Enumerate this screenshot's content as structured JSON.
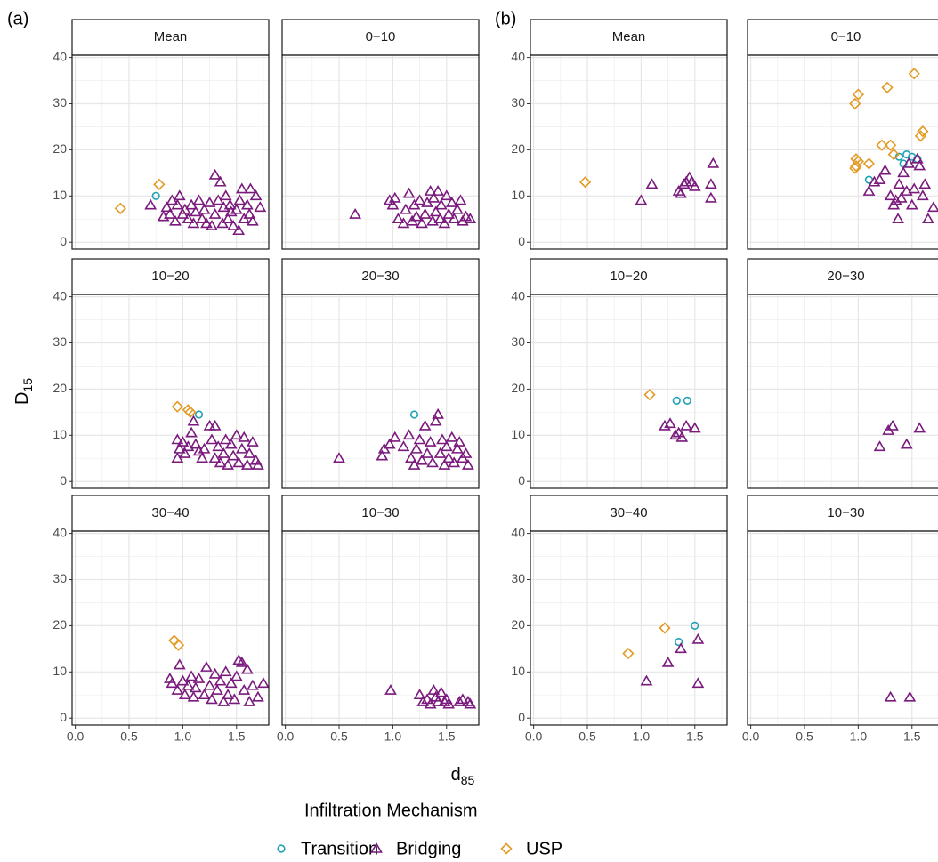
{
  "chart_data": {
    "type": "scatter",
    "xlabel": {
      "text": "d",
      "sub": "85"
    },
    "ylabel": {
      "text": "D",
      "sub": "15"
    },
    "legend_title": "Infiltration Mechanism",
    "legend_position": "bottom",
    "grid": true,
    "xlim": [
      -0.03,
      1.8
    ],
    "ylim": [
      -1.5,
      40.5
    ],
    "xticks": [
      {
        "value": 0,
        "label": "0.0"
      },
      0.5,
      {
        "value": 1,
        "label": "1.0"
      },
      1.5
    ],
    "yticks": [
      0,
      10,
      20,
      30,
      40
    ],
    "series": [
      {
        "name": "Transition",
        "color": "#1fa2b5",
        "marker": "circle"
      },
      {
        "name": "Bridging",
        "color": "#7a1a7d",
        "marker": "triangle"
      },
      {
        "name": "USP",
        "color": "#e39a24",
        "marker": "diamond"
      }
    ],
    "groups": [
      {
        "label": "(a)",
        "panels": [
          {
            "title": "Mean",
            "series": [
              {
                "x": [
                  0.75
                ],
                "values": [
                  10
                ]
              },
              {
                "x": [
                  0.7,
                  0.82,
                  0.85,
                  0.88,
                  0.9,
                  0.93,
                  0.95,
                  0.97,
                  1.0,
                  1.02,
                  1.05,
                  1.08,
                  1.1,
                  1.12,
                  1.15,
                  1.18,
                  1.2,
                  1.22,
                  1.25,
                  1.27,
                  1.3,
                  1.3,
                  1.33,
                  1.35,
                  1.37,
                  1.38,
                  1.4,
                  1.42,
                  1.44,
                  1.45,
                  1.47,
                  1.5,
                  1.52,
                  1.53,
                  1.55,
                  1.57,
                  1.6,
                  1.62,
                  1.63,
                  1.65,
                  1.68,
                  1.72
                ],
                "values": [
                  8,
                  5.5,
                  7.5,
                  6,
                  9,
                  4.5,
                  8,
                  10,
                  6,
                  7,
                  5,
                  8,
                  4,
                  6.5,
                  9,
                  5,
                  7,
                  4,
                  8.5,
                  3.5,
                  6,
                  14.5,
                  9,
                  13,
                  4,
                  7.5,
                  10,
                  5,
                  8,
                  6.5,
                  3.5,
                  7,
                  2.5,
                  9,
                  11.5,
                  5,
                  8,
                  6,
                  11.5,
                  4.5,
                  10,
                  7.5
                ]
              },
              {
                "x": [
                  0.42,
                  0.78
                ],
                "values": [
                  7.3,
                  12.5
                ]
              }
            ]
          },
          {
            "title": "0−10",
            "series": [
              {
                "x": [],
                "values": []
              },
              {
                "x": [
                  0.65,
                  0.97,
                  1.0,
                  1.02,
                  1.05,
                  1.1,
                  1.12,
                  1.15,
                  1.18,
                  1.2,
                  1.22,
                  1.25,
                  1.27,
                  1.3,
                  1.32,
                  1.35,
                  1.37,
                  1.38,
                  1.4,
                  1.42,
                  1.44,
                  1.45,
                  1.48,
                  1.5,
                  1.52,
                  1.55,
                  1.57,
                  1.6,
                  1.63,
                  1.65,
                  1.68,
                  1.72
                ],
                "values": [
                  6,
                  9,
                  8,
                  9.5,
                  5,
                  4,
                  7,
                  10.5,
                  4.5,
                  8,
                  5.5,
                  9,
                  4,
                  6,
                  8.5,
                  11,
                  4.5,
                  9.5,
                  6.5,
                  11,
                  5,
                  8,
                  4,
                  10,
                  6,
                  8.5,
                  5,
                  7,
                  9,
                  4.5,
                  5.5,
                  5
                ]
              },
              {
                "x": [],
                "values": []
              }
            ]
          },
          {
            "title": "10−20",
            "series": [
              {
                "x": [
                  1.15
                ],
                "values": [
                  14.5
                ]
              },
              {
                "x": [
                  0.95,
                  0.95,
                  0.97,
                  1.0,
                  1.02,
                  1.05,
                  1.08,
                  1.1,
                  1.12,
                  1.15,
                  1.18,
                  1.2,
                  1.25,
                  1.27,
                  1.3,
                  1.3,
                  1.33,
                  1.35,
                  1.38,
                  1.4,
                  1.42,
                  1.45,
                  1.47,
                  1.5,
                  1.52,
                  1.55,
                  1.57,
                  1.6,
                  1.62,
                  1.65,
                  1.68,
                  1.7
                ],
                "values": [
                  9,
                  5,
                  7,
                  8.5,
                  6,
                  7.5,
                  10.5,
                  13,
                  8,
                  6.5,
                  5,
                  7,
                  12,
                  9,
                  5,
                  12,
                  7.5,
                  4,
                  6,
                  9,
                  3.5,
                  8,
                  5.5,
                  10,
                  4,
                  7,
                  9.5,
                  3.5,
                  6,
                  8.5,
                  4.5,
                  3.5
                ]
              },
              {
                "x": [
                  0.95,
                  1.05,
                  1.07
                ],
                "values": [
                  16.2,
                  15.5,
                  15
                ]
              }
            ]
          },
          {
            "title": "20−30",
            "series": [
              {
                "x": [
                  1.2
                ],
                "values": [
                  14.5
                ]
              },
              {
                "x": [
                  0.5,
                  0.9,
                  0.92,
                  0.97,
                  1.02,
                  1.1,
                  1.15,
                  1.17,
                  1.2,
                  1.22,
                  1.25,
                  1.27,
                  1.3,
                  1.32,
                  1.35,
                  1.37,
                  1.4,
                  1.42,
                  1.44,
                  1.46,
                  1.48,
                  1.5,
                  1.52,
                  1.55,
                  1.57,
                  1.6,
                  1.62,
                  1.65,
                  1.68,
                  1.7
                ],
                "values": [
                  5,
                  5.5,
                  7,
                  8,
                  9.5,
                  7.5,
                  10,
                  5,
                  3.5,
                  7,
                  9,
                  4.5,
                  12,
                  6,
                  8.5,
                  4,
                  13,
                  14.5,
                  6,
                  9,
                  3.5,
                  7.5,
                  5,
                  9.5,
                  4,
                  7,
                  8.5,
                  5,
                  6,
                  3.5
                ]
              },
              {
                "x": [],
                "values": []
              }
            ]
          },
          {
            "title": "30−40",
            "series": [
              {
                "x": [],
                "values": []
              },
              {
                "x": [
                  0.88,
                  0.9,
                  0.95,
                  0.97,
                  1.0,
                  1.02,
                  1.05,
                  1.08,
                  1.1,
                  1.12,
                  1.15,
                  1.2,
                  1.22,
                  1.25,
                  1.27,
                  1.3,
                  1.32,
                  1.35,
                  1.38,
                  1.4,
                  1.42,
                  1.45,
                  1.48,
                  1.5,
                  1.52,
                  1.55,
                  1.57,
                  1.6,
                  1.62,
                  1.65,
                  1.7,
                  1.75
                ],
                "values": [
                  8.5,
                  7.5,
                  6,
                  11.5,
                  8,
                  5,
                  7,
                  9,
                  4.5,
                  6.5,
                  8.5,
                  5,
                  11,
                  7,
                  4,
                  9.5,
                  6,
                  8,
                  3.5,
                  10,
                  5,
                  7.5,
                  4,
                  9,
                  12.5,
                  12,
                  6,
                  10.5,
                  3.5,
                  7,
                  4.5,
                  7.5
                ]
              },
              {
                "x": [
                  0.92,
                  0.96
                ],
                "values": [
                  16.8,
                  15.8
                ]
              }
            ]
          },
          {
            "title": "10−30",
            "series": [
              {
                "x": [],
                "values": []
              },
              {
                "x": [
                  0.98,
                  1.25,
                  1.28,
                  1.32,
                  1.35,
                  1.38,
                  1.4,
                  1.42,
                  1.45,
                  1.48,
                  1.5,
                  1.52,
                  1.62,
                  1.65,
                  1.7,
                  1.72
                ],
                "values": [
                  6,
                  5,
                  3.5,
                  4,
                  3,
                  6,
                  4.5,
                  3.5,
                  5.5,
                  3.5,
                  4,
                  3,
                  3.5,
                  4,
                  3.5,
                  3
                ]
              },
              {
                "x": [],
                "values": []
              }
            ]
          }
        ]
      },
      {
        "label": "(b)",
        "panels": [
          {
            "title": "Mean",
            "series": [
              {
                "x": [],
                "values": []
              },
              {
                "x": [
                  1.0,
                  1.1,
                  1.35,
                  1.37,
                  1.4,
                  1.42,
                  1.45,
                  1.47,
                  1.5,
                  1.65,
                  1.65,
                  1.67
                ],
                "values": [
                  9,
                  12.5,
                  11,
                  10.5,
                  12.5,
                  13,
                  14,
                  13,
                  12,
                  12.5,
                  9.5,
                  17
                ]
              },
              {
                "x": [
                  0.48
                ],
                "values": [
                  13
                ]
              }
            ]
          },
          {
            "title": "0−10",
            "series": [
              {
                "x": [
                  1.1,
                  1.38,
                  1.42,
                  1.45,
                  1.5,
                  1.55
                ],
                "values": [
                  13.5,
                  18.5,
                  17,
                  19,
                  18.5,
                  18
                ]
              },
              {
                "x": [
                  1.1,
                  1.15,
                  1.2,
                  1.25,
                  1.3,
                  1.33,
                  1.35,
                  1.37,
                  1.38,
                  1.4,
                  1.42,
                  1.45,
                  1.47,
                  1.5,
                  1.52,
                  1.55,
                  1.57,
                  1.6,
                  1.62,
                  1.65,
                  1.7
                ],
                "values": [
                  11,
                  13,
                  13.5,
                  15.5,
                  10,
                  8,
                  9,
                  5,
                  12.5,
                  9.5,
                  15,
                  11,
                  17,
                  8,
                  11.5,
                  18,
                  16.5,
                  10,
                  12.5,
                  5,
                  7.5
                ]
              },
              {
                "x": [
                  0.97,
                  1.0,
                  0.98,
                  0.98,
                  1.0,
                  0.97,
                  1.1,
                  1.22,
                  1.27,
                  1.3,
                  1.33,
                  1.52,
                  1.58,
                  1.6
                ],
                "values": [
                  30,
                  32,
                  16.5,
                  18,
                  17.5,
                  16,
                  17,
                  21,
                  33.5,
                  21,
                  19,
                  36.5,
                  23,
                  24
                ]
              }
            ]
          },
          {
            "title": "10−20",
            "series": [
              {
                "x": [
                  1.33,
                  1.43
                ],
                "values": [
                  17.5,
                  17.5
                ]
              },
              {
                "x": [
                  1.22,
                  1.27,
                  1.32,
                  1.35,
                  1.38,
                  1.42,
                  1.5
                ],
                "values": [
                  12,
                  12.5,
                  10,
                  10.5,
                  9.5,
                  12,
                  11.5
                ]
              },
              {
                "x": [
                  1.08
                ],
                "values": [
                  18.8
                ]
              }
            ]
          },
          {
            "title": "20−30",
            "series": [
              {
                "x": [],
                "values": []
              },
              {
                "x": [
                  1.2,
                  1.28,
                  1.32,
                  1.45,
                  1.57
                ],
                "values": [
                  7.5,
                  11,
                  12,
                  8,
                  11.5
                ]
              },
              {
                "x": [],
                "values": []
              }
            ]
          },
          {
            "title": "30−40",
            "series": [
              {
                "x": [
                  1.35,
                  1.5
                ],
                "values": [
                  16.5,
                  20
                ]
              },
              {
                "x": [
                  1.05,
                  1.25,
                  1.37,
                  1.53,
                  1.53
                ],
                "values": [
                  8,
                  12,
                  15,
                  17,
                  7.5
                ]
              },
              {
                "x": [
                  0.88,
                  1.22
                ],
                "values": [
                  14,
                  19.5
                ]
              }
            ]
          },
          {
            "title": "10−30",
            "series": [
              {
                "x": [],
                "values": []
              },
              {
                "x": [
                  1.3,
                  1.48
                ],
                "values": [
                  4.5,
                  4.5
                ]
              },
              {
                "x": [],
                "values": []
              }
            ]
          }
        ]
      }
    ]
  }
}
